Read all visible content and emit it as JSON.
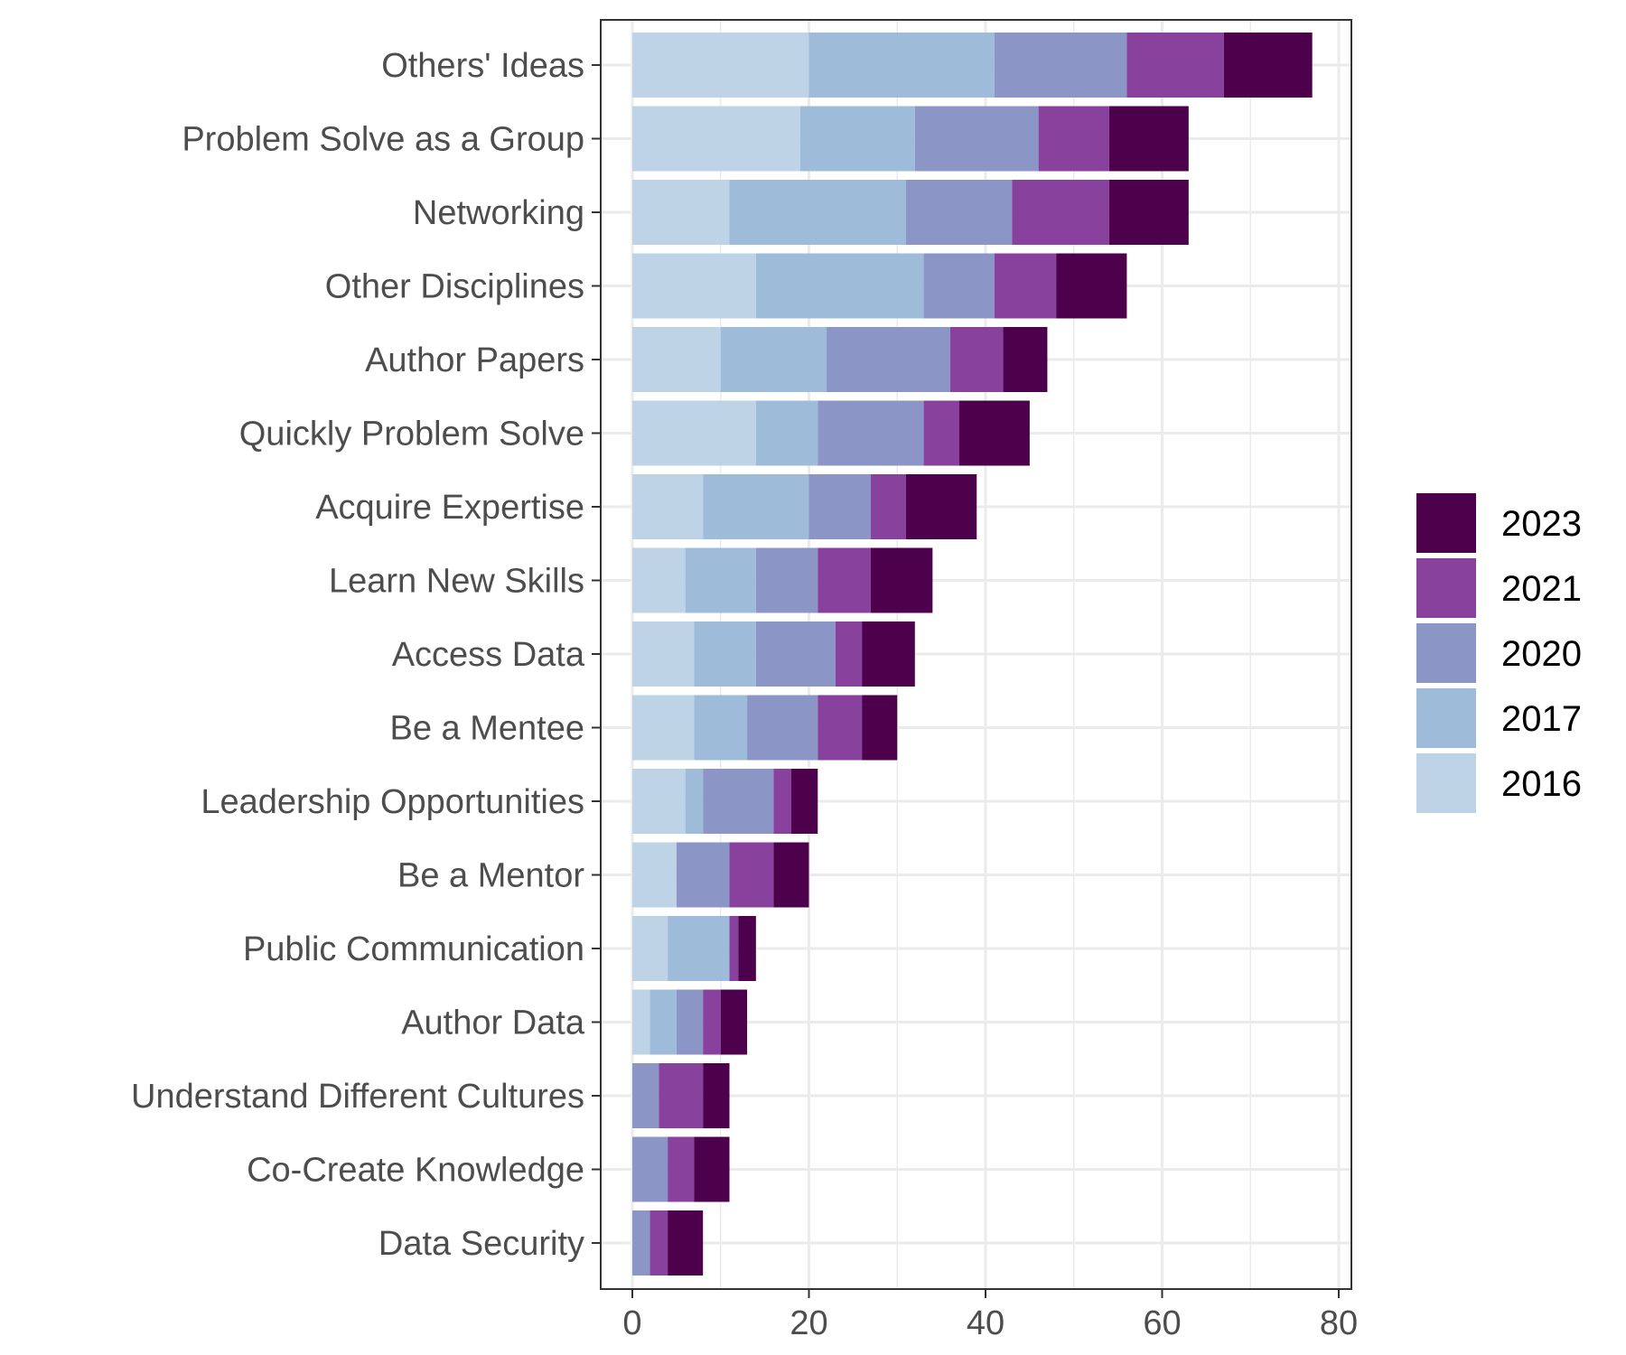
{
  "chart_data": {
    "type": "bar",
    "orientation": "horizontal",
    "stacked": true,
    "title": "",
    "xlabel": "",
    "ylabel": "",
    "xlim": [
      0,
      80
    ],
    "x_ticks": [
      0,
      20,
      40,
      60,
      80
    ],
    "grid": true,
    "legend_position": "right",
    "categories": [
      "Others' Ideas",
      "Problem Solve as a Group",
      "Networking",
      "Other Disciplines",
      "Author Papers",
      "Quickly Problem Solve",
      "Acquire Expertise",
      "Learn New Skills",
      "Access Data",
      "Be a Mentee",
      "Leadership Opportunities",
      "Be a Mentor",
      "Public Communication",
      "Author Data",
      "Understand Different Cultures",
      "Co-Create Knowledge",
      "Data Security"
    ],
    "series": [
      {
        "name": "2016",
        "color": "#bfd3e6",
        "values": [
          20,
          19,
          11,
          14,
          10,
          14,
          8,
          6,
          7,
          7,
          6,
          5,
          4,
          2,
          0,
          0,
          0
        ]
      },
      {
        "name": "2017",
        "color": "#9ebcda",
        "values": [
          21,
          13,
          20,
          19,
          12,
          7,
          12,
          8,
          7,
          6,
          2,
          0,
          7,
          3,
          0,
          0,
          0
        ]
      },
      {
        "name": "2020",
        "color": "#8c96c6",
        "values": [
          15,
          14,
          12,
          8,
          14,
          12,
          7,
          7,
          9,
          8,
          8,
          6,
          0,
          3,
          3,
          4,
          2
        ]
      },
      {
        "name": "2021",
        "color": "#88419d",
        "values": [
          11,
          8,
          11,
          7,
          6,
          4,
          4,
          6,
          3,
          5,
          2,
          5,
          1,
          2,
          5,
          3,
          2
        ]
      },
      {
        "name": "2023",
        "color": "#4d004b",
        "values": [
          10,
          9,
          9,
          8,
          5,
          8,
          8,
          7,
          6,
          4,
          3,
          4,
          2,
          3,
          3,
          4,
          4
        ]
      }
    ],
    "legend_order": [
      "2023",
      "2021",
      "2020",
      "2017",
      "2016"
    ]
  }
}
